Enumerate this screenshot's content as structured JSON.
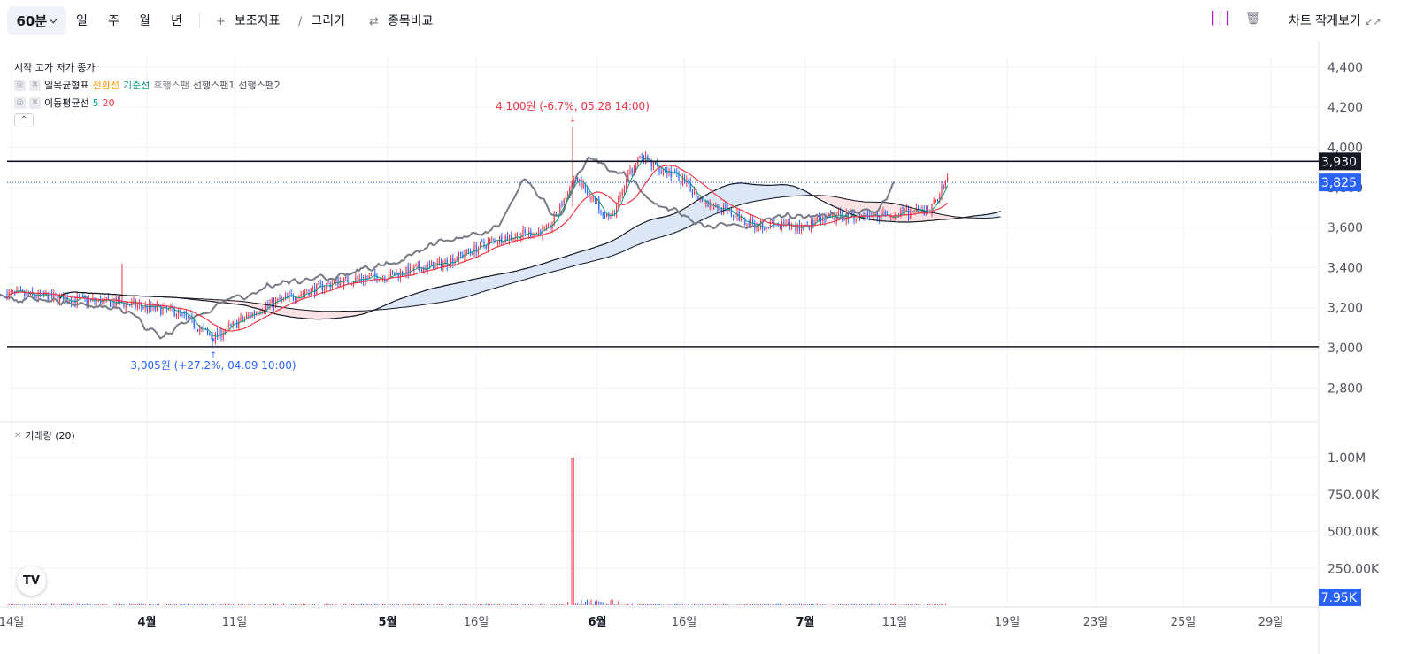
{
  "toolbar": {
    "interval": "60분",
    "periods": [
      "일",
      "주",
      "월",
      "년"
    ],
    "indicators": "보조지표",
    "drawing": "그리기",
    "compare": "종목비교",
    "compact_view": "차트 작게보기"
  },
  "legend": {
    "ohlc": "시작 고가 저가 종가",
    "ichimoku": {
      "name": "일목균형표",
      "conversion": "전환선",
      "base": "기준선",
      "lagging": "후행스팬",
      "span1": "선행스팬1",
      "span2": "선행스팬2"
    },
    "ma": {
      "name": "이동평균선",
      "p5": "5",
      "p20": "20"
    },
    "volume": "거래량 (20)"
  },
  "colors": {
    "up": "#f23645",
    "down": "#2962ff",
    "conversion": "#ff9800",
    "base": "#089981",
    "lagging": "#787b86",
    "ma5": "#089981",
    "ma20": "#f23645",
    "price_line": "#2962ff"
  },
  "annotations": {
    "high": "4,100원 (-6.7%, 05.28 14:00)",
    "low": "3,005원 (+27.2%, 04.09 10:00)"
  },
  "price_axis": {
    "ticks": [
      "4,400",
      "4,200",
      "4,000",
      "3,800",
      "3,600",
      "3,400",
      "3,200",
      "3,000",
      "2,800"
    ],
    "line_level": "3,930",
    "current": "3,825"
  },
  "volume_axis": {
    "ticks": [
      "1.00M",
      "750.00K",
      "500.00K",
      "250.00K"
    ],
    "current": "7.95K"
  },
  "time_axis": [
    "14일",
    "4월",
    "11일",
    "5월",
    "16일",
    "6월",
    "16일",
    "7월",
    "11일",
    "19일",
    "23일",
    "25일",
    "29일"
  ],
  "logo": "TV"
}
